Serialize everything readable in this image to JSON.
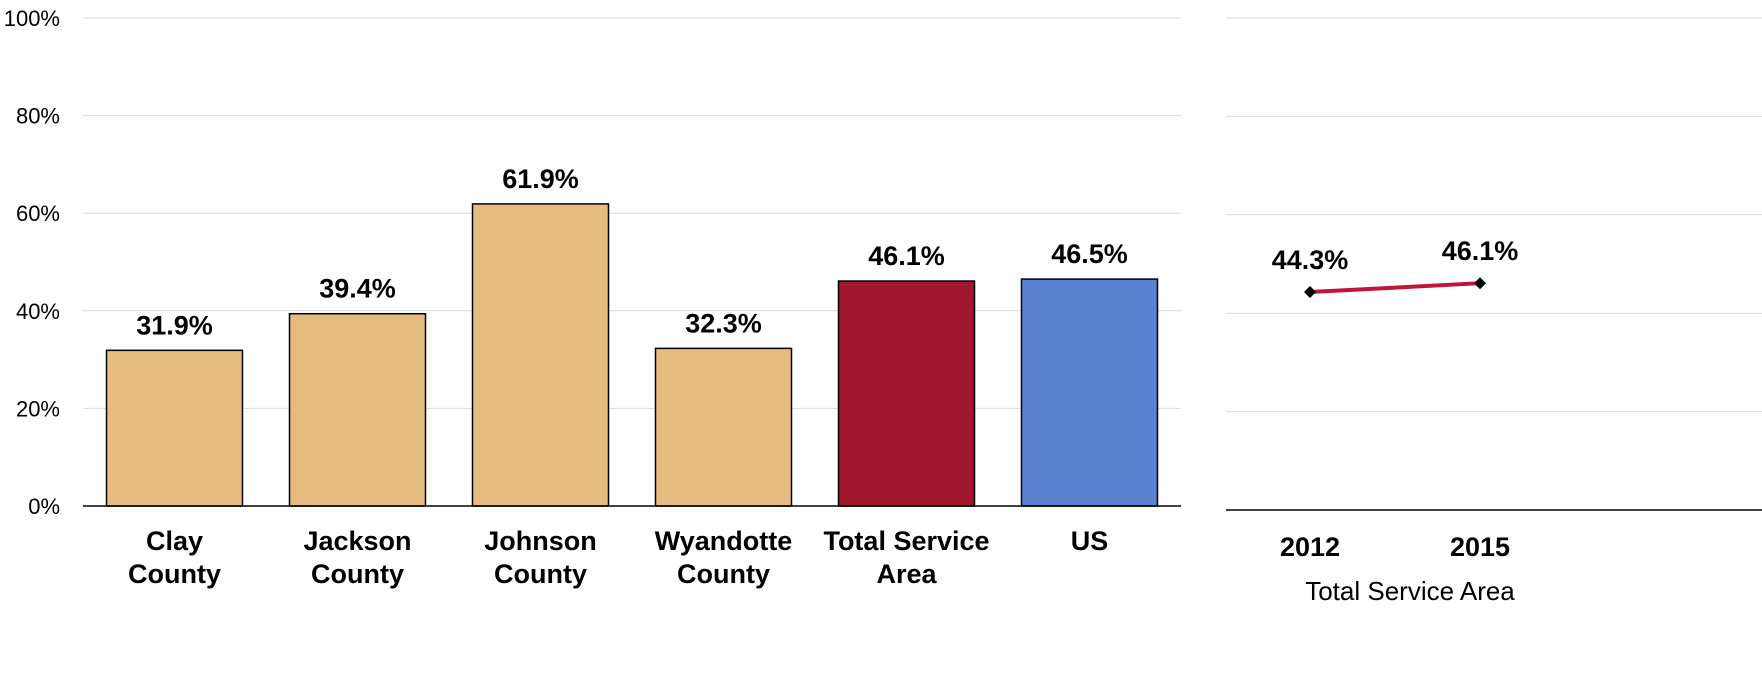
{
  "colors": {
    "county": "#E5BC7F",
    "total_service_area": "#A0172E",
    "us": "#5A82D1",
    "trend_line": "#C0143C",
    "grid": "#D9D9D9",
    "axis": "#000000"
  },
  "chart_data": [
    {
      "type": "bar",
      "categories": [
        [
          "Clay",
          "County"
        ],
        [
          "Jackson",
          "County"
        ],
        [
          "Johnson",
          "County"
        ],
        [
          "Wyandotte",
          "County"
        ],
        [
          "Total Service",
          "Area"
        ],
        [
          "US"
        ]
      ],
      "values": [
        31.9,
        39.4,
        61.9,
        32.3,
        46.1,
        46.5
      ],
      "data_labels": [
        "31.9%",
        "39.4%",
        "61.9%",
        "32.3%",
        "46.1%",
        "46.5%"
      ],
      "bar_colors": [
        "county",
        "county",
        "county",
        "county",
        "total_service_area",
        "us"
      ],
      "ylim": [
        0,
        100
      ],
      "yticks": [
        0,
        20,
        40,
        60,
        80,
        100
      ],
      "ytick_labels": [
        "0%",
        "20%",
        "40%",
        "60%",
        "80%",
        "100%"
      ],
      "grid": true,
      "legend": "none"
    },
    {
      "type": "line",
      "categories": [
        "2012",
        "2015"
      ],
      "values": [
        44.3,
        46.1
      ],
      "data_labels": [
        "44.3%",
        "46.1%"
      ],
      "ylim": [
        0,
        100
      ],
      "xlabel": "Total Service Area",
      "grid": true,
      "legend": "none"
    }
  ]
}
